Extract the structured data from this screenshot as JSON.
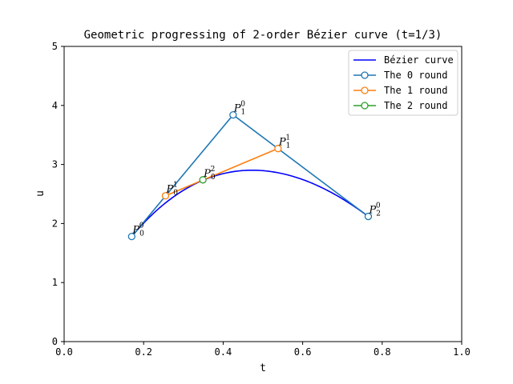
{
  "chart_data": {
    "type": "line",
    "title": "Geometric progressing of 2-order Bézier curve (t=1/3)",
    "xlabel": "t",
    "ylabel": "u",
    "xlim": [
      0.0,
      1.0
    ],
    "ylim": [
      0,
      5
    ],
    "xticks": [
      "0.0",
      "0.2",
      "0.4",
      "0.6",
      "0.8",
      "1.0"
    ],
    "yticks": [
      "0",
      "1",
      "2",
      "3",
      "4",
      "5"
    ],
    "grid": false,
    "legend_position": "top-right",
    "series": [
      {
        "name": "Bézier curve",
        "color": "#0000ff",
        "marker": "none",
        "control_points": [
          [
            0.17,
            1.78
          ],
          [
            0.425,
            3.84
          ],
          [
            0.765,
            2.12
          ]
        ]
      },
      {
        "name": "The 0 round",
        "color": "#1f77b4",
        "marker": "circle",
        "points": [
          [
            0.17,
            1.78
          ],
          [
            0.425,
            3.84
          ],
          [
            0.765,
            2.12
          ]
        ],
        "labels": [
          [
            "P",
            "0",
            "0"
          ],
          [
            "P",
            "1",
            "0"
          ],
          [
            "P",
            "2",
            "0"
          ]
        ]
      },
      {
        "name": "The 1 round",
        "color": "#ff7f0e",
        "marker": "circle",
        "points": [
          [
            0.255,
            2.47
          ],
          [
            0.538,
            3.27
          ]
        ],
        "labels": [
          [
            "P",
            "0",
            "1"
          ],
          [
            "P",
            "1",
            "1"
          ]
        ]
      },
      {
        "name": "The 2 round",
        "color": "#2ca02c",
        "marker": "circle",
        "points": [
          [
            0.349,
            2.74
          ]
        ],
        "labels": [
          [
            "P",
            "0",
            "2"
          ]
        ]
      }
    ]
  }
}
